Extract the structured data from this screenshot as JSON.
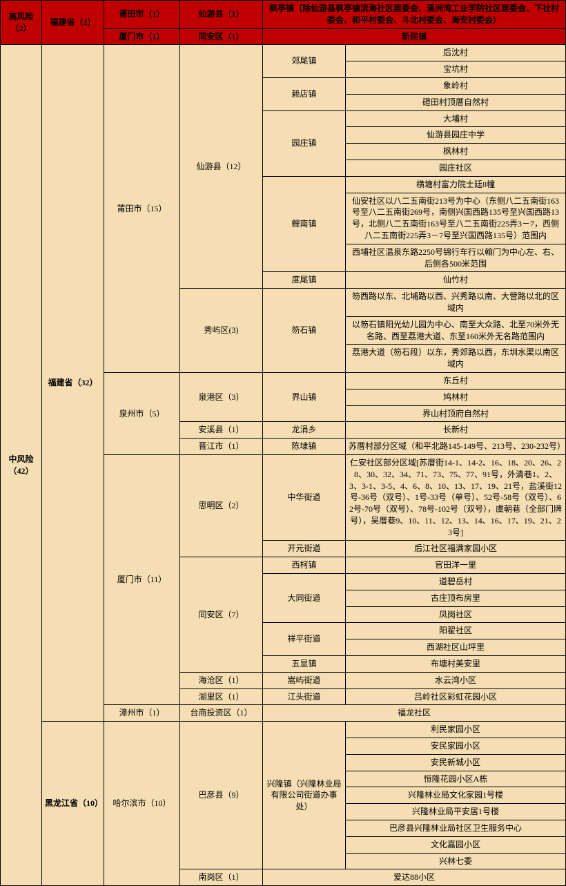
{
  "high": {
    "risk": "高风险（2）",
    "prov": "福建省（2）",
    "r1": {
      "city": "莆田市（1）",
      "dist": "仙游县（1）",
      "desc": "枫亭镇（除仙游县枫亭镇滨海社区居委会、溪洲湾工业学院社区居委会、下社村委会、和平村委会、斗北村委会、海安村委会）"
    },
    "r2": {
      "city": "厦门市（1）",
      "dist": "同安区（1）",
      "desc": "新民镇"
    }
  },
  "m": {
    "risk": "中风险（42）",
    "fj": {
      "prov": "福建省（32）",
      "pt": {
        "city": "莆田市（15）",
        "xy": {
          "dist": "仙游县（12）",
          "jw": {
            "t": "郊尾镇",
            "v": [
              "后沈村",
              "宝坑村"
            ]
          },
          "ld": {
            "t": "赖店镇",
            "v": [
              "象岭村",
              "磴田村顶厝自然村"
            ]
          },
          "yz": {
            "t": "园庄镇",
            "v": [
              "大埔村",
              "仙游县园庄中学",
              "枫林村",
              "园庄社区"
            ]
          },
          "ln": {
            "t": "鲤南镇",
            "v": [
              "横塘村富力院士廷8幢",
              "仙安社区以八二五南街213号为中心（东侧八二五南街163号至八二五南街269号，南侧兴国西路135号至兴国西路13号，北侧八二五南街163号至八二五南街225弄3－7，西侧八二五南街225弄3－7号至兴国西路135号）范围内",
              "西埔社区温泉东路2250号锦行车行以翰门为中心左、右、后侧各500米范围"
            ]
          },
          "dw": {
            "t": "度尾镇",
            "v": [
              "仙竹村"
            ]
          }
        },
        "xy2": {
          "dist": "秀屿区(3)",
          "t": "笏石镇",
          "v": [
            "笏西路以东、北埔路以西、兴秀路以南、大营路以北的区域内",
            "以笏石镇阳光幼儿园为中心、南至大众路、北至70米外无名路、西至荔港大道、东至160米外无名路范围内",
            "荔港大道（笏石段）以东，秀郊路以西，东圳水渠以南区域内"
          ]
        }
      },
      "qz": {
        "city": "泉州市（5）",
        "qg": {
          "dist": "泉港区（3）",
          "t": "界山镇",
          "v": [
            "东丘村",
            "鸠林村",
            "界山村顶府自然村"
          ]
        },
        "ax": {
          "dist": "安溪县（1）",
          "t": "龙涓乡",
          "v": [
            "长新村"
          ]
        },
        "jj": {
          "dist": "晋江市（1）",
          "t": "陈埭镇",
          "v": [
            "苏厝村部分区域（和平北路145-149号、213号、230-232号）"
          ]
        }
      },
      "xm": {
        "city": "厦门市（11）",
        "sm": {
          "dist": "思明区（2）",
          "zh": {
            "t": "中华街道",
            "v": "仁安社区部分区域[苏厝街14-1、14-2、16、18、20、26、28、30、32、34、71、73、75、77、91号，外清巷1、2、3、3-1、3-5、4、6、8、10、13、17、19、21号，盐溪街12号-36号（双号）、1号-33号（单号）、52号-58号（双号）、62号-70号（双号）、78号-102号（双号），虞朝巷（全部门牌号），吴厝巷9、10、11、12、13、14、16、17、19、21、23号]"
          },
          "ky": {
            "t": "开元街道",
            "v": "后江社区福满家园小区"
          }
        },
        "ta": {
          "dist": "同安区（7）",
          "xk": {
            "t": "西柯镇",
            "v": "官田洋一里"
          },
          "dt": {
            "t": "大同街道",
            "v": [
              "道碧岳村",
              "古庄顶布房里",
              "凤岗社区"
            ]
          },
          "xp": {
            "t": "祥平街道",
            "v": [
              "阳翟社区",
              "西湖社区山坪里"
            ]
          },
          "wx": {
            "t": "五显镇",
            "v": "布塘村美安里"
          }
        },
        "hc": {
          "dist": "海沧区（1）",
          "t": "嵩屿街道",
          "v": "水云湾小区"
        },
        "hl": {
          "dist": "湖里区（1）",
          "t": "江头街道",
          "v": "吕岭社区彩虹花园小区"
        }
      },
      "zz": {
        "city": "漳州市（1）",
        "dist": "台商投资区（1）",
        "v": "福龙社区"
      }
    },
    "hlj": {
      "prov": "黑龙江省（10）",
      "city": "哈尔滨市（10）",
      "by": {
        "dist": "巴彦县（9）",
        "t": "兴隆镇（兴隆林业局有限公司街道办事处）",
        "v": [
          "利民家园小区",
          "安民家园小区",
          "安民新城小区",
          "恒隆花园小区A栋",
          "兴隆林业局文化家园1号楼",
          "兴隆林业局平安居1号楼",
          "巴彦县兴隆林业局社区卫生服务中心",
          "文化嘉园小区",
          "兴林七委"
        ]
      },
      "ng": {
        "dist": "南岗区（1）",
        "v": "爱达88小区"
      }
    }
  }
}
